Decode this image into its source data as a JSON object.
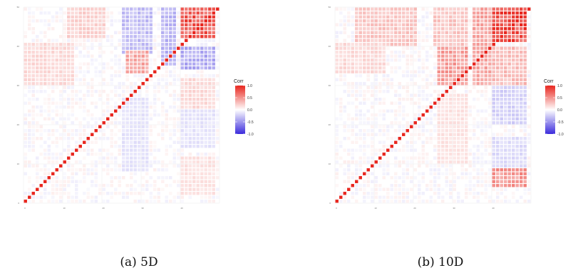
{
  "colors": {
    "positive": "#e8261e",
    "neutral": "#ffffff",
    "negative": "#3b2bdc",
    "grid": "#ececec",
    "axis": "#cfcfcf"
  },
  "chart_data": [
    {
      "type": "heatmap",
      "caption": "(a) 5D",
      "n": 50,
      "value_range": [
        -1,
        1
      ],
      "legend": {
        "title": "Corr",
        "ticks": [
          1.0,
          0.5,
          0.0,
          -0.5,
          -1.0
        ],
        "tick_labels": [
          "1.0",
          "0.5",
          "0.0",
          "-0.5",
          "-1.0"
        ]
      },
      "x_tick_labels": [
        "0",
        "10",
        "20",
        "30",
        "40"
      ],
      "y_tick_labels": [
        "0",
        "10",
        "20",
        "30",
        "40",
        "50"
      ],
      "blocks": [
        {
          "rows": [
            42,
            49
          ],
          "cols": [
            40,
            48
          ],
          "value": 0.85
        },
        {
          "rows": [
            34,
            39
          ],
          "cols": [
            40,
            48
          ],
          "value": -0.45
        },
        {
          "rows": [
            24,
            31
          ],
          "cols": [
            40,
            48
          ],
          "value": 0.2
        },
        {
          "rows": [
            14,
            23
          ],
          "cols": [
            40,
            48
          ],
          "value": -0.15
        },
        {
          "rows": [
            2,
            11
          ],
          "cols": [
            40,
            48
          ],
          "value": 0.15
        },
        {
          "rows": [
            38,
            49
          ],
          "cols": [
            25,
            32
          ],
          "value": -0.35
        },
        {
          "rows": [
            33,
            38
          ],
          "cols": [
            26,
            31
          ],
          "value": 0.45
        },
        {
          "rows": [
            8,
            26
          ],
          "cols": [
            25,
            31
          ],
          "value": -0.15
        },
        {
          "rows": [
            42,
            49
          ],
          "cols": [
            11,
            20
          ],
          "value": 0.25
        },
        {
          "rows": [
            30,
            40
          ],
          "cols": [
            0,
            12
          ],
          "value": 0.2
        },
        {
          "rows": [
            35,
            49
          ],
          "cols": [
            35,
            38
          ],
          "value": -0.4
        }
      ]
    },
    {
      "type": "heatmap",
      "caption": "(b) 10D",
      "n": 50,
      "value_range": [
        -1,
        1
      ],
      "legend": {
        "title": "Corr",
        "ticks": [
          1.0,
          0.5,
          0.0,
          -0.5,
          -1.0
        ],
        "tick_labels": [
          "1.0",
          "0.5",
          "0.0",
          "-0.5",
          "-1.0"
        ]
      },
      "x_tick_labels": [
        "0",
        "10",
        "20",
        "30",
        "40"
      ],
      "y_tick_labels": [
        "0",
        "10",
        "20",
        "30",
        "40",
        "50"
      ],
      "blocks": [
        {
          "rows": [
            41,
            49
          ],
          "cols": [
            40,
            48
          ],
          "value": 0.95
        },
        {
          "rows": [
            30,
            39
          ],
          "cols": [
            40,
            48
          ],
          "value": 0.35
        },
        {
          "rows": [
            20,
            29
          ],
          "cols": [
            40,
            48
          ],
          "value": -0.25
        },
        {
          "rows": [
            4,
            8
          ],
          "cols": [
            40,
            48
          ],
          "value": 0.55
        },
        {
          "rows": [
            9,
            16
          ],
          "cols": [
            40,
            48
          ],
          "value": -0.2
        },
        {
          "rows": [
            40,
            49
          ],
          "cols": [
            25,
            33
          ],
          "value": 0.3
        },
        {
          "rows": [
            30,
            39
          ],
          "cols": [
            26,
            33
          ],
          "value": 0.5
        },
        {
          "rows": [
            10,
            27
          ],
          "cols": [
            26,
            33
          ],
          "value": 0.15
        },
        {
          "rows": [
            40,
            49
          ],
          "cols": [
            5,
            20
          ],
          "value": 0.3
        },
        {
          "rows": [
            33,
            40
          ],
          "cols": [
            0,
            12
          ],
          "value": 0.2
        },
        {
          "rows": [
            30,
            49
          ],
          "cols": [
            35,
            39
          ],
          "value": 0.45
        }
      ]
    }
  ]
}
